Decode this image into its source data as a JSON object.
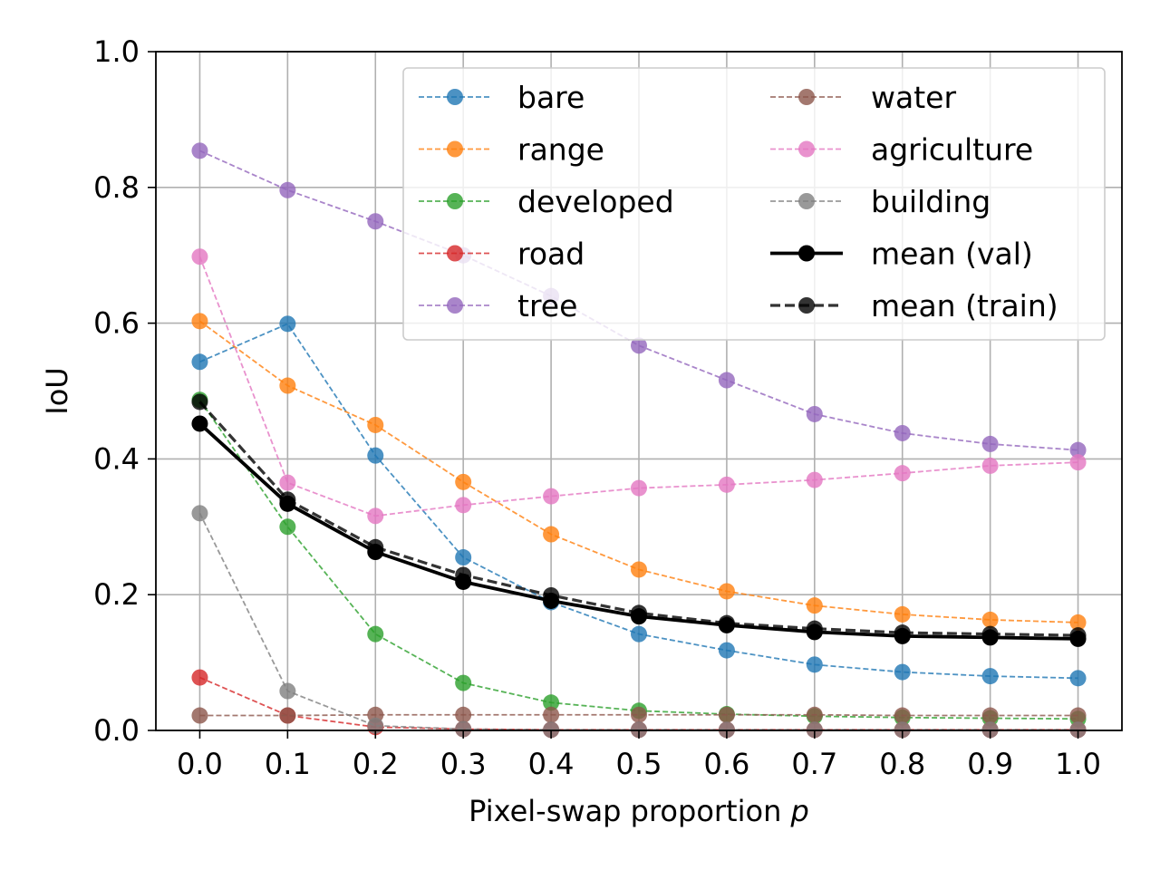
{
  "chart_data": {
    "type": "line",
    "title": "",
    "xlabel": "Pixel-swap proportion",
    "xlabel_symbol": "p",
    "ylabel": "IoU",
    "x": [
      0.0,
      0.1,
      0.2,
      0.3,
      0.4,
      0.5,
      0.6,
      0.7,
      0.8,
      0.9,
      1.0
    ],
    "xlim": [
      -0.05,
      1.05
    ],
    "ylim": [
      0.0,
      1.0
    ],
    "xticks": [
      "0.0",
      "0.1",
      "0.2",
      "0.3",
      "0.4",
      "0.5",
      "0.6",
      "0.7",
      "0.8",
      "0.9",
      "1.0"
    ],
    "yticks": [
      "0.0",
      "0.2",
      "0.4",
      "0.6",
      "0.8",
      "1.0"
    ],
    "grid": true,
    "legend_position": "top-right",
    "series": [
      {
        "name": "bare",
        "color": "#1f77b4",
        "style": "dashed",
        "values": [
          0.543,
          0.599,
          0.405,
          0.255,
          0.189,
          0.142,
          0.118,
          0.097,
          0.086,
          0.08,
          0.077
        ]
      },
      {
        "name": "range",
        "color": "#ff7f0e",
        "style": "dashed",
        "values": [
          0.603,
          0.508,
          0.45,
          0.366,
          0.289,
          0.237,
          0.205,
          0.184,
          0.171,
          0.163,
          0.159
        ]
      },
      {
        "name": "developed",
        "color": "#2ca02c",
        "style": "dashed",
        "values": [
          0.487,
          0.3,
          0.142,
          0.07,
          0.041,
          0.029,
          0.024,
          0.021,
          0.019,
          0.018,
          0.017
        ]
      },
      {
        "name": "road",
        "color": "#d62728",
        "style": "dashed",
        "values": [
          0.078,
          0.022,
          0.005,
          0.002,
          0.001,
          0.001,
          0.001,
          0.001,
          0.001,
          0.001,
          0.001
        ]
      },
      {
        "name": "tree",
        "color": "#9467bd",
        "style": "dashed",
        "values": [
          0.854,
          0.796,
          0.75,
          0.7,
          0.64,
          0.567,
          0.516,
          0.466,
          0.438,
          0.422,
          0.413
        ]
      },
      {
        "name": "water",
        "color": "#8c564b",
        "style": "dashed",
        "values": [
          0.022,
          0.022,
          0.023,
          0.023,
          0.023,
          0.023,
          0.023,
          0.023,
          0.022,
          0.022,
          0.022
        ]
      },
      {
        "name": "agriculture",
        "color": "#e377c2",
        "style": "dashed",
        "values": [
          0.698,
          0.365,
          0.316,
          0.332,
          0.345,
          0.357,
          0.362,
          0.369,
          0.379,
          0.39,
          0.395
        ]
      },
      {
        "name": "building",
        "color": "#7f7f7f",
        "style": "dashed",
        "values": [
          0.32,
          0.058,
          0.007,
          0.002,
          0.001,
          0.001,
          0.001,
          0.001,
          0.001,
          0.001,
          0.001
        ]
      },
      {
        "name": "mean (val)",
        "color": "#000000",
        "style": "solid",
        "values": [
          0.452,
          0.334,
          0.263,
          0.219,
          0.191,
          0.168,
          0.155,
          0.145,
          0.139,
          0.137,
          0.135
        ]
      },
      {
        "name": "mean (train)",
        "color": "#000000",
        "style": "dashed-bold",
        "values": [
          0.484,
          0.34,
          0.27,
          0.229,
          0.199,
          0.173,
          0.158,
          0.15,
          0.144,
          0.142,
          0.14
        ]
      }
    ]
  }
}
